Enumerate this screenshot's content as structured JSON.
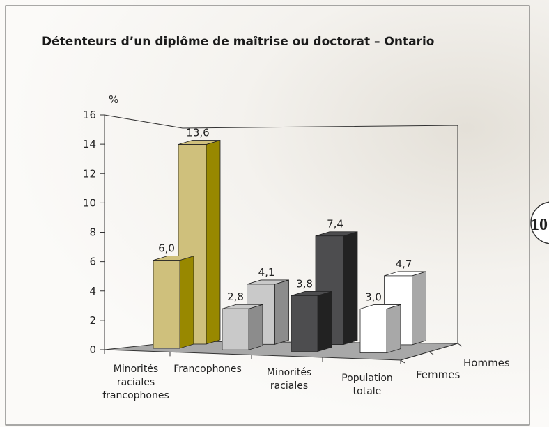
{
  "chart_data": {
    "type": "bar3d",
    "title": "Détenteurs d’un diplôme de maîtrise ou doctorat – Ontario",
    "y_label": "%",
    "categories": [
      "Minorités\nraciales\nfrancophones",
      "Francophones",
      "Minorités\nraciales",
      "Population\ntotale"
    ],
    "series": [
      {
        "name": "Femmes",
        "values": [
          6.0,
          2.8,
          3.8,
          3.0
        ],
        "value_labels": [
          "6,0",
          "2,8",
          "3,8",
          "3,0"
        ]
      },
      {
        "name": "Hommes",
        "values": [
          13.6,
          4.1,
          7.4,
          4.7
        ],
        "value_labels": [
          "13,6",
          "4,1",
          "7,4",
          "4,7"
        ]
      }
    ],
    "category_colors": [
      "#cfc07c",
      "#c9c9c9",
      "#4d4d4f",
      "#ffffff"
    ],
    "side_colors": [
      "#988800",
      "#8c8c8c",
      "#222222",
      "#a8a8a8"
    ],
    "floor_color": "#a8a8a8",
    "ylim": [
      0,
      16
    ],
    "yticks": [
      0,
      2,
      4,
      6,
      8,
      10,
      12,
      14,
      16
    ],
    "page_number": "10"
  }
}
